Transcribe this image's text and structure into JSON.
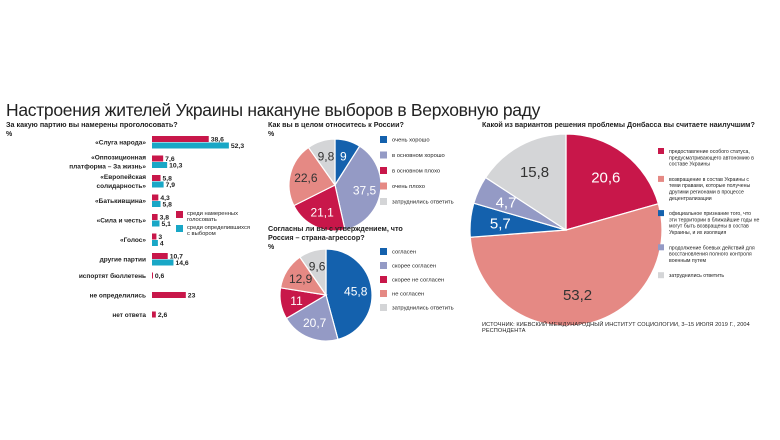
{
  "title": "Настроения жителей Украины накануне выборов в Верховную раду",
  "source": "ИСТОЧНИК: КИЕВСКИЙ МЕЖДУНАРОДНЫЙ ИНСТИТУТ СОЦИОЛОГИИ, 3–15 ИЮЛЯ 2019 Г., 2004 РЕСПОНДЕНТА",
  "colors": {
    "red": "#c8174a",
    "cyan": "#19a7c6",
    "blue": "#1461ad",
    "lavender": "#949ac5",
    "salmon": "#e58984",
    "gray": "#d4d5d7"
  },
  "chart_data": [
    {
      "type": "bar",
      "question": "За какую партию вы намерены проголосовать?",
      "unit": "%",
      "categories": [
        "«Слуга народа»",
        "«Оппозиционная платформа – За жизнь»",
        "«Европейская солидарность»",
        "«Батькивщина»",
        "«Сила и честь»",
        "«Голос»",
        "другие партии",
        "испортят бюллетень",
        "не определились",
        "нет ответа"
      ],
      "series": [
        {
          "name": "среди намеренных голосовать",
          "color": "#c8174a",
          "values": [
            38.6,
            7.6,
            5.8,
            4.3,
            3.8,
            3,
            10.7,
            0.6,
            23,
            2.6
          ]
        },
        {
          "name": "среди определившихся с выбором",
          "color": "#19a7c6",
          "values": [
            52.3,
            10.3,
            7.9,
            5.8,
            5.1,
            4,
            14.6,
            null,
            null,
            null
          ]
        }
      ]
    },
    {
      "type": "pie",
      "question": "Как вы в целом относитесь к России?",
      "unit": "%",
      "slices": [
        {
          "label": "очень хорошо",
          "value": 9,
          "color": "#1461ad"
        },
        {
          "label": "в основном хорошо",
          "value": 37.5,
          "color": "#949ac5"
        },
        {
          "label": "в основном плохо",
          "value": 21.1,
          "color": "#c8174a"
        },
        {
          "label": "очень плохо",
          "value": 22.6,
          "color": "#e58984"
        },
        {
          "label": "затруднились ответить",
          "value": 9.8,
          "color": "#d4d5d7"
        }
      ]
    },
    {
      "type": "pie",
      "question": "Согласны ли вы с утверждением, что Россия – страна-агрессор?",
      "unit": "%",
      "slices": [
        {
          "label": "согласен",
          "value": 45.8,
          "color": "#1461ad"
        },
        {
          "label": "скорее согласен",
          "value": 20.7,
          "color": "#949ac5"
        },
        {
          "label": "скорее не согласен",
          "value": 11,
          "color": "#c8174a"
        },
        {
          "label": "не согласен",
          "value": 12.9,
          "color": "#e58984"
        },
        {
          "label": "затруднились ответить",
          "value": 9.6,
          "color": "#d4d5d7"
        }
      ]
    },
    {
      "type": "pie",
      "question": "Какой из вариантов решения проблемы Донбасса вы считаете наилучшим?",
      "unit": "%",
      "slices": [
        {
          "label": "предоставление особого статуса, предусматривающего автономию в составе Украины",
          "value": 20.6,
          "color": "#c8174a"
        },
        {
          "label": "возвращение в состав Украины с теми правами, которые получены другими регионами в процессе децентрализации",
          "value": 53.2,
          "color": "#e58984"
        },
        {
          "label": "официальное признание того, что эти территории в ближайшие годы не могут быть возвращены в состав Украины, и их изоляция",
          "value": 5.7,
          "color": "#1461ad"
        },
        {
          "label": "продолжение боевых действий для восстановления полного контроля военным путем",
          "value": 4.7,
          "color": "#949ac5"
        },
        {
          "label": "затруднились ответить",
          "value": 15.8,
          "color": "#d4d5d7"
        }
      ]
    }
  ]
}
